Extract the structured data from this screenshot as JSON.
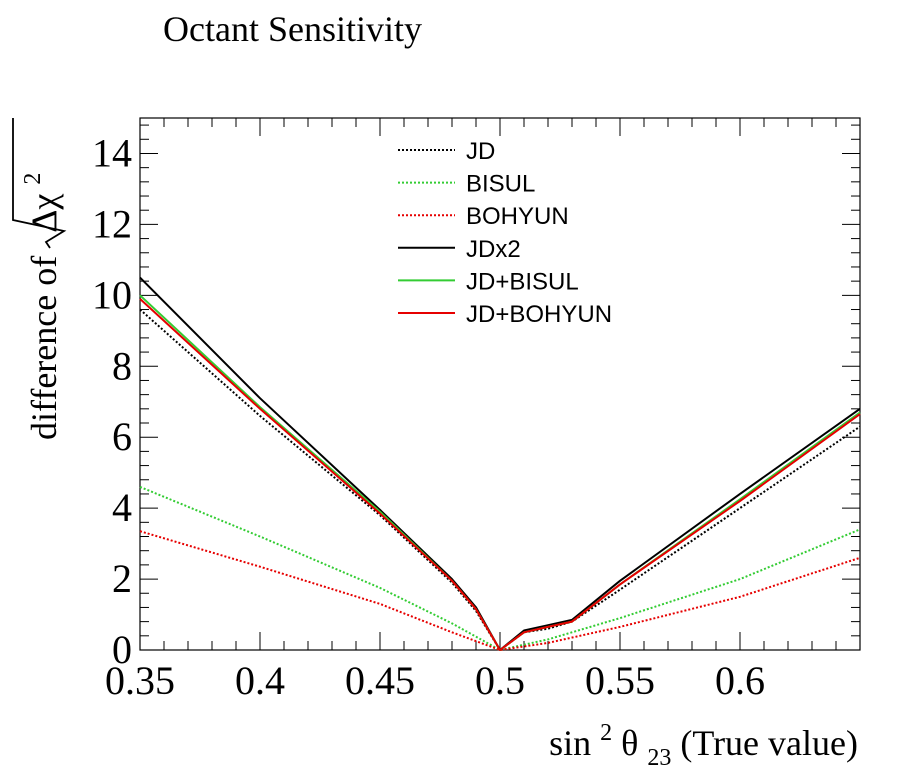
{
  "chart_data": {
    "type": "line",
    "title": "Octant Sensitivity",
    "ylabel": "difference of",
    "ylabel_symbol": "Δχ",
    "ylabel_sup": "2",
    "xlabel_prefix": "sin",
    "xlabel_sup": "2",
    "xlabel_theta": "θ",
    "xlabel_sub": "23",
    "xlabel_suffix": "(True value)",
    "xlim": [
      0.35,
      0.65
    ],
    "ylim": [
      0,
      15
    ],
    "x_ticks": [
      0.35,
      0.4,
      0.45,
      0.5,
      0.55,
      0.6
    ],
    "x_tick_labels": [
      "0.35",
      "0.4",
      "0.45",
      "0.5",
      "0.55",
      "0.6"
    ],
    "y_ticks": [
      0,
      2,
      4,
      6,
      8,
      10,
      12,
      14
    ],
    "y_tick_labels": [
      "0",
      "2",
      "4",
      "6",
      "8",
      "10",
      "12",
      "14"
    ],
    "legend_position": "top-center",
    "series": [
      {
        "name": "JD",
        "color": "#000000",
        "style": "dotted",
        "x": [
          0.35,
          0.4,
          0.45,
          0.48,
          0.49,
          0.5,
          0.51,
          0.52,
          0.53,
          0.55,
          0.6,
          0.65
        ],
        "y": [
          9.6,
          6.6,
          3.8,
          1.9,
          1.1,
          0.0,
          0.5,
          0.6,
          0.8,
          1.7,
          4.0,
          6.3
        ]
      },
      {
        "name": "BISUL",
        "color": "#33cc33",
        "style": "dotted",
        "x": [
          0.35,
          0.4,
          0.45,
          0.48,
          0.5,
          0.52,
          0.55,
          0.6,
          0.65
        ],
        "y": [
          4.6,
          3.2,
          1.75,
          0.75,
          0.0,
          0.3,
          0.9,
          2.0,
          3.4
        ]
      },
      {
        "name": "BOHYUN",
        "color": "#e60000",
        "style": "dotted",
        "x": [
          0.35,
          0.4,
          0.45,
          0.48,
          0.5,
          0.52,
          0.55,
          0.6,
          0.65
        ],
        "y": [
          3.35,
          2.35,
          1.3,
          0.5,
          0.0,
          0.2,
          0.65,
          1.5,
          2.6
        ]
      },
      {
        "name": "JDx2",
        "color": "#000000",
        "style": "solid",
        "x": [
          0.35,
          0.4,
          0.45,
          0.48,
          0.49,
          0.5,
          0.51,
          0.52,
          0.53,
          0.55,
          0.6,
          0.65
        ],
        "y": [
          10.5,
          7.1,
          3.95,
          2.0,
          1.2,
          0.0,
          0.55,
          0.7,
          0.85,
          1.95,
          4.4,
          6.8
        ]
      },
      {
        "name": "JD+BISUL",
        "color": "#33cc33",
        "style": "solid",
        "x": [
          0.35,
          0.4,
          0.45,
          0.48,
          0.49,
          0.5,
          0.51,
          0.52,
          0.53,
          0.55,
          0.6,
          0.65
        ],
        "y": [
          10.0,
          6.85,
          3.9,
          1.95,
          1.15,
          0.0,
          0.5,
          0.65,
          0.8,
          1.85,
          4.25,
          6.7
        ]
      },
      {
        "name": "JD+BOHYUN",
        "color": "#e60000",
        "style": "solid",
        "x": [
          0.35,
          0.4,
          0.45,
          0.48,
          0.49,
          0.5,
          0.51,
          0.52,
          0.53,
          0.55,
          0.6,
          0.65
        ],
        "y": [
          9.9,
          6.8,
          3.85,
          1.95,
          1.15,
          0.0,
          0.5,
          0.65,
          0.8,
          1.85,
          4.2,
          6.65
        ]
      }
    ]
  }
}
